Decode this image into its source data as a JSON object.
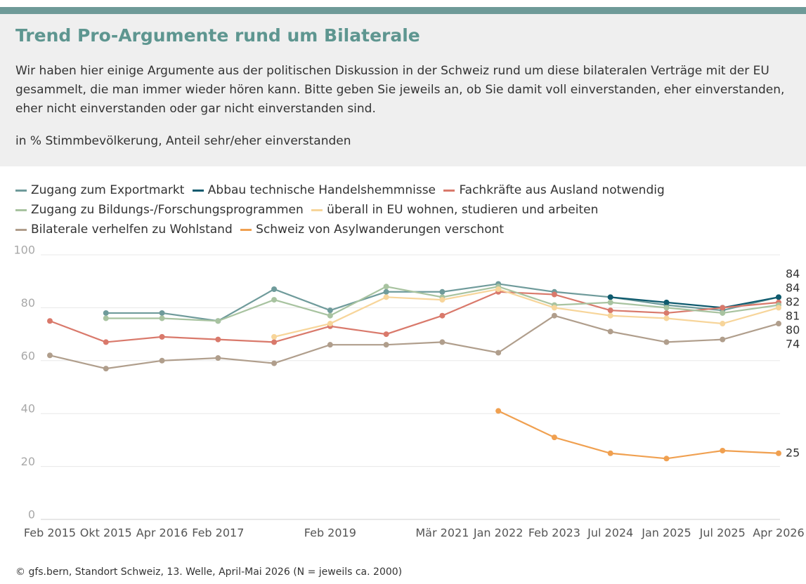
{
  "header": {
    "title": "Trend Pro-Argumente rund um Bilaterale",
    "description": "Wir haben hier einige Argumente aus der politischen Diskussion in der Schweiz rund um diese bilateralen Verträge mit der EU gesammelt, die man immer wieder hören kann. Bitte geben Sie jeweils an, ob Sie damit voll einverstanden, eher einverstanden, eher nicht einverstanden oder gar nicht einverstanden sind.",
    "note": "in % Stimmbevölkerung, Anteil sehr/eher einverstanden"
  },
  "chart_data": {
    "type": "line",
    "categories": [
      "Feb 2015",
      "Okt 2015",
      "Apr 2016",
      "Feb 2017",
      null,
      "Feb 2019",
      null,
      "Mär 2021",
      "Jan 2022",
      "Feb 2023",
      "Jul 2024",
      "Jan 2025",
      "Jul 2025",
      "Apr 2026"
    ],
    "series": [
      {
        "name": "Zugang zum Exportmarkt",
        "color": "#6f9b9b",
        "values": [
          null,
          78,
          78,
          75,
          87,
          79,
          86,
          86,
          89,
          86,
          84,
          81,
          79,
          84
        ]
      },
      {
        "name": "Abbau technische Handelshemmnisse",
        "color": "#0e5a6e",
        "values": [
          null,
          null,
          null,
          null,
          null,
          null,
          null,
          null,
          null,
          null,
          84,
          82,
          80,
          84
        ]
      },
      {
        "name": "Fachkräfte aus Ausland notwendig",
        "color": "#d9796b",
        "values": [
          75,
          67,
          69,
          68,
          67,
          73,
          70,
          77,
          86,
          85,
          79,
          78,
          80,
          82
        ]
      },
      {
        "name": "Zugang zu Bildungs-/Forschungsprogrammen",
        "color": "#a8c3a0",
        "values": [
          null,
          76,
          76,
          75,
          83,
          77,
          88,
          84,
          88,
          81,
          82,
          80,
          78,
          81
        ]
      },
      {
        "name": "überall in EU wohnen, studieren und arbeiten",
        "color": "#f7d59a",
        "values": [
          null,
          null,
          null,
          null,
          69,
          74,
          84,
          83,
          87,
          80,
          77,
          76,
          74,
          80
        ]
      },
      {
        "name": "Bilaterale verhelfen zu Wohlstand",
        "color": "#b09e8c",
        "values": [
          62,
          57,
          60,
          61,
          59,
          66,
          66,
          67,
          63,
          77,
          71,
          67,
          68,
          74
        ]
      },
      {
        "name": "Schweiz von Asylwanderungen verschont",
        "color": "#f0a050",
        "values": [
          null,
          null,
          null,
          null,
          null,
          null,
          null,
          null,
          41,
          31,
          25,
          23,
          26,
          25
        ]
      }
    ],
    "ylim": [
      0,
      100
    ],
    "yticks": [
      0,
      20,
      40,
      60,
      80,
      100
    ],
    "grid": true
  },
  "footer": "© gfs.bern, Standort Schweiz, 13. Welle, April-Mai 2026 (N = jeweils ca. 2000)"
}
